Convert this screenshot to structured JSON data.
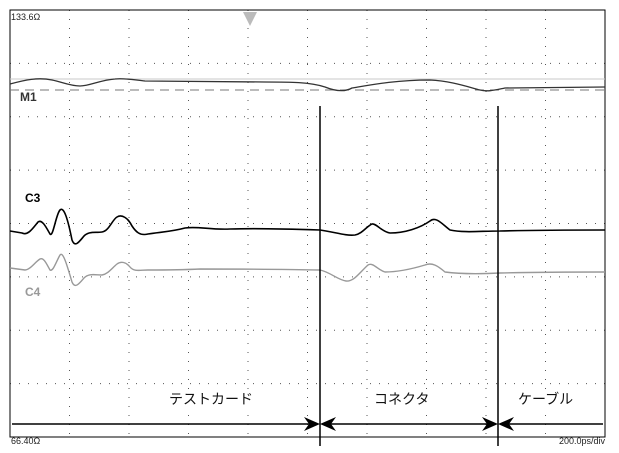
{
  "scope": {
    "scale_top": "133.6Ω",
    "scale_bottom": "66.40Ω",
    "timebase": "200.0ps/div",
    "grid": {
      "divisions_x": 10,
      "divisions_y": 8
    },
    "trigger_marker": "trigger-triangle-icon"
  },
  "channels": [
    {
      "label": "M1",
      "color": "#333333"
    },
    {
      "label": "C3",
      "color": "#000000"
    },
    {
      "label": "C4",
      "color": "#999999"
    }
  ],
  "segments": [
    {
      "label": "テストカード"
    },
    {
      "label": "コネクタ"
    },
    {
      "label": "ケーブル"
    }
  ],
  "colors": {
    "background": "#ffffff",
    "grid": "#555555",
    "frame": "#000000",
    "reference": "#bbbbbb",
    "trigger": "#bbbbbb"
  }
}
